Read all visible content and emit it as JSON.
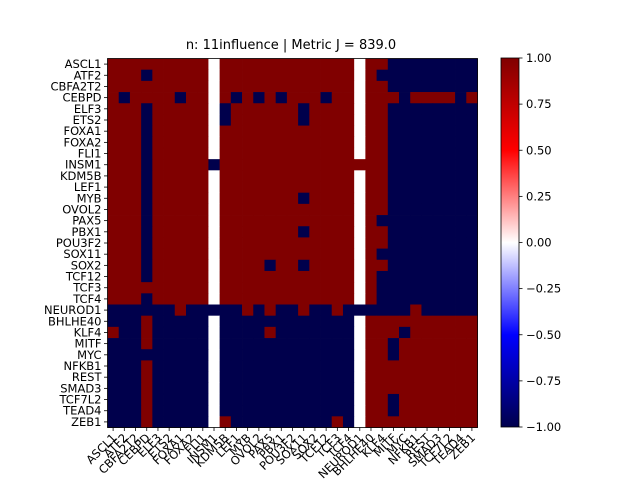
{
  "chart_data": {
    "type": "heatmap",
    "title": "n: 11influence | Metric J = 839.0",
    "xlabel": "",
    "ylabel": "",
    "genes": [
      "ASCL1",
      "ATF2",
      "CBFA2T2",
      "CEBPD",
      "ELF3",
      "ETS2",
      "FOXA1",
      "FOXA2",
      "FLI1",
      "INSM1",
      "KDM5B",
      "LEF1",
      "MYB",
      "OVOL2",
      "PAX5",
      "PBX1",
      "POU3F2",
      "SOX11",
      "SOX2",
      "TCF12",
      "TCF3",
      "TCF4",
      "NEUROD1",
      "BHLHE40",
      "KLF4",
      "MITF",
      "MYC",
      "NFKB1",
      "REST",
      "SMAD3",
      "TCF7L2",
      "TEAD4",
      "ZEB1"
    ],
    "row_tick_labels": [
      "ASCL1",
      "ATF2",
      "CBFA2T2",
      "CEBPD",
      "ELF3",
      "ETS2",
      "FOXA1",
      "FOXA2",
      "FLI1",
      "INSM1",
      "KDM5B",
      "LEF1",
      "MYB",
      "OVOL2",
      "PAX5",
      "PBX1",
      "POU3F2",
      "SOX11",
      "SOX2",
      "TCF12",
      "TCF3",
      "TCF4",
      "NEUROD1",
      "BHLHE40",
      "KLF4",
      "MITF",
      "MYC",
      "NFKB1",
      "REST",
      "SMAD3",
      "TCF7L2",
      "TEAD4",
      "ZEB1"
    ],
    "col_tick_labels": [
      "ASCL1",
      "ATF2",
      "CBFA2T2",
      "CEBPD",
      "ELF3",
      "ETS2",
      "FOXA1",
      "FOXA2",
      "FLI1",
      "INSM1",
      "KDM5B",
      "LEF1",
      "MYB",
      "OVOL2",
      "PAX5",
      "PBX1",
      "POU3F2",
      "SOX11",
      "SOX2",
      "TCF12",
      "TCF3",
      "TCF4",
      "NEUROD1",
      "BHLHE40",
      "KLF4",
      "MITF",
      "MYC",
      "NFKB1",
      "REST",
      "SMAD3",
      "TCF7L2",
      "TEAD4",
      "ZEB1"
    ],
    "matrix": [
      [
        1,
        1,
        1,
        1,
        1,
        1,
        1,
        1,
        1,
        0,
        1,
        1,
        1,
        1,
        1,
        1,
        1,
        1,
        1,
        1,
        1,
        1,
        0,
        1,
        1,
        -1,
        -1,
        -1,
        -1,
        -1,
        -1,
        -1,
        -1
      ],
      [
        1,
        1,
        1,
        -1,
        1,
        1,
        1,
        1,
        1,
        0,
        1,
        1,
        1,
        1,
        1,
        1,
        1,
        1,
        1,
        1,
        1,
        1,
        0,
        1,
        -1,
        -1,
        -1,
        -1,
        -1,
        -1,
        -1,
        -1,
        -1
      ],
      [
        1,
        1,
        1,
        1,
        1,
        1,
        1,
        1,
        1,
        0,
        1,
        1,
        1,
        1,
        1,
        1,
        1,
        1,
        1,
        1,
        1,
        1,
        0,
        1,
        1,
        -1,
        -1,
        -1,
        -1,
        -1,
        -1,
        -1,
        -1
      ],
      [
        1,
        -1,
        1,
        1,
        1,
        1,
        -1,
        1,
        1,
        0,
        1,
        -1,
        1,
        -1,
        1,
        -1,
        1,
        1,
        1,
        -1,
        1,
        1,
        0,
        1,
        1,
        1,
        -1,
        1,
        1,
        1,
        1,
        -1,
        1
      ],
      [
        1,
        1,
        1,
        -1,
        1,
        1,
        1,
        1,
        1,
        0,
        -1,
        1,
        1,
        1,
        1,
        1,
        1,
        -1,
        1,
        1,
        1,
        1,
        0,
        1,
        1,
        -1,
        -1,
        -1,
        -1,
        -1,
        -1,
        -1,
        -1
      ],
      [
        1,
        1,
        1,
        -1,
        1,
        1,
        1,
        1,
        1,
        0,
        -1,
        1,
        1,
        1,
        1,
        1,
        1,
        -1,
        1,
        1,
        1,
        1,
        0,
        1,
        1,
        -1,
        -1,
        -1,
        -1,
        -1,
        -1,
        -1,
        -1
      ],
      [
        1,
        1,
        1,
        -1,
        1,
        1,
        1,
        1,
        1,
        0,
        1,
        1,
        1,
        1,
        1,
        1,
        1,
        1,
        1,
        1,
        1,
        1,
        0,
        1,
        1,
        -1,
        -1,
        -1,
        -1,
        -1,
        -1,
        -1,
        -1
      ],
      [
        1,
        1,
        1,
        -1,
        1,
        1,
        1,
        1,
        1,
        0,
        1,
        1,
        1,
        1,
        1,
        1,
        1,
        1,
        1,
        1,
        1,
        1,
        0,
        1,
        1,
        -1,
        -1,
        -1,
        -1,
        -1,
        -1,
        -1,
        -1
      ],
      [
        1,
        1,
        1,
        -1,
        1,
        1,
        1,
        1,
        1,
        0,
        1,
        1,
        1,
        1,
        1,
        1,
        1,
        1,
        1,
        1,
        1,
        1,
        0,
        1,
        1,
        -1,
        -1,
        -1,
        -1,
        -1,
        -1,
        -1,
        -1
      ],
      [
        1,
        1,
        1,
        -1,
        1,
        1,
        1,
        1,
        1,
        -1,
        1,
        1,
        1,
        1,
        1,
        1,
        1,
        1,
        1,
        1,
        1,
        1,
        1,
        1,
        1,
        -1,
        -1,
        -1,
        -1,
        -1,
        -1,
        -1,
        -1
      ],
      [
        1,
        1,
        1,
        -1,
        1,
        1,
        1,
        1,
        1,
        0,
        1,
        1,
        1,
        1,
        1,
        1,
        1,
        1,
        1,
        1,
        1,
        1,
        0,
        1,
        1,
        -1,
        -1,
        -1,
        -1,
        -1,
        -1,
        -1,
        -1
      ],
      [
        1,
        1,
        1,
        -1,
        1,
        1,
        1,
        1,
        1,
        0,
        1,
        1,
        1,
        1,
        1,
        1,
        1,
        1,
        1,
        1,
        1,
        1,
        0,
        1,
        1,
        -1,
        -1,
        -1,
        -1,
        -1,
        -1,
        -1,
        -1
      ],
      [
        1,
        1,
        1,
        -1,
        1,
        1,
        1,
        1,
        1,
        0,
        1,
        1,
        1,
        1,
        1,
        1,
        1,
        -1,
        1,
        1,
        1,
        1,
        0,
        1,
        1,
        -1,
        -1,
        -1,
        -1,
        -1,
        -1,
        -1,
        -1
      ],
      [
        1,
        1,
        1,
        -1,
        1,
        1,
        1,
        1,
        1,
        0,
        1,
        1,
        1,
        1,
        1,
        1,
        1,
        1,
        1,
        1,
        1,
        1,
        0,
        1,
        1,
        -1,
        -1,
        -1,
        -1,
        -1,
        -1,
        -1,
        -1
      ],
      [
        1,
        1,
        1,
        -1,
        1,
        1,
        1,
        1,
        1,
        0,
        1,
        1,
        1,
        1,
        1,
        1,
        1,
        1,
        1,
        1,
        1,
        1,
        0,
        1,
        -1,
        -1,
        -1,
        -1,
        -1,
        -1,
        -1,
        -1,
        -1
      ],
      [
        1,
        1,
        1,
        -1,
        1,
        1,
        1,
        1,
        1,
        0,
        1,
        1,
        1,
        1,
        1,
        1,
        1,
        -1,
        1,
        1,
        1,
        1,
        0,
        1,
        1,
        -1,
        -1,
        -1,
        -1,
        -1,
        -1,
        -1,
        -1
      ],
      [
        1,
        1,
        1,
        -1,
        1,
        1,
        1,
        1,
        1,
        0,
        1,
        1,
        1,
        1,
        1,
        1,
        1,
        1,
        1,
        1,
        1,
        1,
        0,
        1,
        1,
        -1,
        -1,
        -1,
        -1,
        -1,
        -1,
        -1,
        -1
      ],
      [
        1,
        1,
        1,
        -1,
        1,
        1,
        1,
        1,
        1,
        0,
        1,
        1,
        1,
        1,
        1,
        1,
        1,
        1,
        1,
        1,
        1,
        1,
        0,
        1,
        -1,
        -1,
        -1,
        -1,
        -1,
        -1,
        -1,
        -1,
        -1
      ],
      [
        1,
        1,
        1,
        -1,
        1,
        1,
        1,
        1,
        1,
        0,
        1,
        1,
        1,
        1,
        -1,
        1,
        1,
        -1,
        1,
        1,
        1,
        1,
        0,
        1,
        1,
        -1,
        -1,
        -1,
        -1,
        -1,
        -1,
        -1,
        -1
      ],
      [
        1,
        1,
        1,
        -1,
        1,
        1,
        1,
        1,
        1,
        0,
        1,
        1,
        1,
        1,
        1,
        1,
        1,
        1,
        1,
        1,
        1,
        1,
        0,
        1,
        -1,
        -1,
        -1,
        -1,
        -1,
        -1,
        -1,
        -1,
        -1
      ],
      [
        1,
        1,
        1,
        1,
        1,
        1,
        1,
        1,
        1,
        0,
        1,
        1,
        1,
        1,
        1,
        1,
        1,
        1,
        1,
        1,
        1,
        1,
        0,
        1,
        -1,
        -1,
        -1,
        -1,
        -1,
        -1,
        -1,
        -1,
        -1
      ],
      [
        1,
        1,
        1,
        -1,
        1,
        1,
        1,
        1,
        1,
        0,
        1,
        1,
        1,
        1,
        1,
        1,
        1,
        1,
        1,
        1,
        1,
        1,
        0,
        1,
        -1,
        -1,
        -1,
        -1,
        -1,
        -1,
        -1,
        -1,
        -1
      ],
      [
        -1,
        -1,
        -1,
        -1,
        -1,
        -1,
        1,
        -1,
        -1,
        -1,
        -1,
        -1,
        1,
        -1,
        1,
        -1,
        -1,
        1,
        -1,
        -1,
        1,
        -1,
        -1,
        -1,
        -1,
        -1,
        -1,
        1,
        -1,
        -1,
        -1,
        -1,
        -1
      ],
      [
        -1,
        -1,
        -1,
        1,
        -1,
        -1,
        -1,
        -1,
        -1,
        0,
        -1,
        -1,
        -1,
        -1,
        -1,
        -1,
        -1,
        -1,
        -1,
        -1,
        -1,
        -1,
        0,
        1,
        1,
        1,
        1,
        1,
        1,
        1,
        1,
        1,
        1
      ],
      [
        1,
        -1,
        -1,
        1,
        -1,
        -1,
        -1,
        -1,
        -1,
        0,
        -1,
        -1,
        -1,
        -1,
        1,
        -1,
        -1,
        -1,
        -1,
        -1,
        -1,
        -1,
        0,
        1,
        1,
        1,
        -1,
        1,
        1,
        1,
        1,
        1,
        1
      ],
      [
        -1,
        -1,
        -1,
        1,
        -1,
        -1,
        -1,
        -1,
        -1,
        0,
        -1,
        -1,
        -1,
        -1,
        -1,
        -1,
        -1,
        -1,
        -1,
        -1,
        -1,
        -1,
        0,
        1,
        1,
        -1,
        1,
        1,
        1,
        1,
        1,
        1,
        1
      ],
      [
        -1,
        -1,
        -1,
        -1,
        -1,
        -1,
        -1,
        -1,
        -1,
        0,
        -1,
        -1,
        -1,
        -1,
        -1,
        -1,
        -1,
        -1,
        -1,
        -1,
        -1,
        -1,
        0,
        1,
        1,
        -1,
        1,
        1,
        1,
        1,
        1,
        1,
        1
      ],
      [
        -1,
        -1,
        -1,
        1,
        -1,
        -1,
        -1,
        -1,
        -1,
        0,
        -1,
        -1,
        -1,
        -1,
        -1,
        -1,
        -1,
        -1,
        -1,
        -1,
        -1,
        -1,
        0,
        1,
        1,
        1,
        1,
        1,
        1,
        1,
        1,
        1,
        1
      ],
      [
        -1,
        -1,
        -1,
        1,
        -1,
        -1,
        -1,
        -1,
        -1,
        0,
        -1,
        -1,
        -1,
        -1,
        -1,
        -1,
        -1,
        -1,
        -1,
        -1,
        -1,
        -1,
        0,
        1,
        1,
        1,
        1,
        1,
        1,
        1,
        1,
        1,
        1
      ],
      [
        -1,
        -1,
        -1,
        1,
        -1,
        -1,
        -1,
        -1,
        -1,
        0,
        -1,
        -1,
        -1,
        -1,
        -1,
        -1,
        -1,
        -1,
        -1,
        -1,
        -1,
        -1,
        0,
        1,
        1,
        1,
        1,
        1,
        1,
        1,
        1,
        1,
        1
      ],
      [
        -1,
        -1,
        -1,
        1,
        -1,
        -1,
        -1,
        -1,
        -1,
        0,
        -1,
        -1,
        -1,
        -1,
        -1,
        -1,
        -1,
        -1,
        -1,
        -1,
        -1,
        -1,
        0,
        1,
        1,
        -1,
        1,
        1,
        1,
        1,
        1,
        1,
        1
      ],
      [
        -1,
        -1,
        -1,
        1,
        -1,
        -1,
        -1,
        -1,
        -1,
        0,
        -1,
        -1,
        -1,
        -1,
        -1,
        -1,
        -1,
        -1,
        -1,
        -1,
        -1,
        -1,
        0,
        1,
        1,
        -1,
        1,
        1,
        1,
        1,
        1,
        1,
        1
      ],
      [
        -1,
        -1,
        -1,
        1,
        -1,
        -1,
        -1,
        -1,
        -1,
        0,
        1,
        -1,
        -1,
        -1,
        -1,
        -1,
        -1,
        -1,
        -1,
        -1,
        1,
        -1,
        0,
        1,
        1,
        1,
        1,
        1,
        1,
        1,
        1,
        1,
        1
      ]
    ],
    "colorbar": {
      "cmap": "seismic",
      "vmin": -1.0,
      "vmax": 1.0,
      "tick_values": [
        1.0,
        0.75,
        0.5,
        0.25,
        0.0,
        -0.25,
        -0.5,
        -0.75,
        -1.0
      ],
      "tick_labels": [
        "1.00",
        "0.75",
        "0.50",
        "0.25",
        "0.00",
        "−0.25",
        "−0.50",
        "−0.75",
        "−1.00"
      ]
    },
    "colors": {
      "positive": "#800000",
      "neutral": "#ffffff",
      "negative": "#00004c"
    }
  }
}
